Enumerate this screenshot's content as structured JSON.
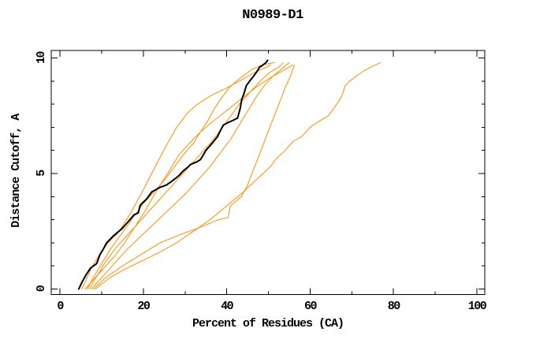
{
  "title": "N0989-D1",
  "chart_data": {
    "type": "line",
    "title": "N0989-D1",
    "xlabel": "Percent of Residues (CA)",
    "ylabel": "Distance Cutoff, A",
    "xlim": [
      0,
      100
    ],
    "ylim": [
      0,
      10
    ],
    "x_major_ticks": [
      0,
      20,
      40,
      60,
      80,
      100
    ],
    "x_minor_ticks": [
      10,
      30,
      50,
      70,
      90
    ],
    "y_major_ticks": [
      0,
      5,
      10
    ],
    "y_minor_ticks": [
      1,
      2,
      3,
      4,
      6,
      7,
      8,
      9
    ],
    "grid": false,
    "legend": "none",
    "colors": {
      "background": "#ffffff",
      "axis": "#000000",
      "highlight_model": "#000000",
      "other_models": "#ff8c00"
    },
    "series": [
      {
        "name": "orange-curve-1",
        "color": "#ff8c00",
        "width": 1,
        "points": [
          [
            5.2,
            0.0
          ],
          [
            6.5,
            0.5
          ],
          [
            7.8,
            1.0
          ],
          [
            9.5,
            1.5
          ],
          [
            11.5,
            2.0
          ],
          [
            13.8,
            2.4
          ],
          [
            16.0,
            3.0
          ],
          [
            17.9,
            3.6
          ],
          [
            20.0,
            4.3
          ],
          [
            22.0,
            5.0
          ],
          [
            24.0,
            5.7
          ],
          [
            26.1,
            6.4
          ],
          [
            28.0,
            7.0
          ],
          [
            30.5,
            7.6
          ],
          [
            33.0,
            8.0
          ],
          [
            36.5,
            8.4
          ],
          [
            40.0,
            8.7
          ],
          [
            44.0,
            9.1
          ],
          [
            47.0,
            9.4
          ],
          [
            49.5,
            9.6
          ],
          [
            50.5,
            9.7
          ]
        ]
      },
      {
        "name": "orange-curve-2",
        "color": "#ff8c00",
        "width": 1,
        "points": [
          [
            6.5,
            0.0
          ],
          [
            8.0,
            0.5
          ],
          [
            10.0,
            1.1
          ],
          [
            12.0,
            1.7
          ],
          [
            14.0,
            2.2
          ],
          [
            16.0,
            2.7
          ],
          [
            18.0,
            3.2
          ],
          [
            20.0,
            3.7
          ],
          [
            22.5,
            4.2
          ],
          [
            25.0,
            4.7
          ],
          [
            27.5,
            5.3
          ],
          [
            30.0,
            5.9
          ],
          [
            32.0,
            6.3
          ],
          [
            33.7,
            6.8
          ],
          [
            35.5,
            7.3
          ],
          [
            37.0,
            7.8
          ],
          [
            38.5,
            8.2
          ],
          [
            40.5,
            8.7
          ],
          [
            43.0,
            9.1
          ],
          [
            46.0,
            9.5
          ],
          [
            48.5,
            9.7
          ],
          [
            51.5,
            9.8
          ]
        ]
      },
      {
        "name": "orange-curve-3",
        "color": "#ff8c00",
        "width": 1,
        "points": [
          [
            7.0,
            0.0
          ],
          [
            9.0,
            0.6
          ],
          [
            11.0,
            1.2
          ],
          [
            13.5,
            1.8
          ],
          [
            16.0,
            2.3
          ],
          [
            19.0,
            2.9
          ],
          [
            22.0,
            3.5
          ],
          [
            25.0,
            4.1
          ],
          [
            28.0,
            4.7
          ],
          [
            31.0,
            5.3
          ],
          [
            34.0,
            5.9
          ],
          [
            36.5,
            6.4
          ],
          [
            39.0,
            7.0
          ],
          [
            41.0,
            7.5
          ],
          [
            43.0,
            8.0
          ],
          [
            45.5,
            8.5
          ],
          [
            48.0,
            9.0
          ],
          [
            50.5,
            9.4
          ],
          [
            52.5,
            9.6
          ],
          [
            53.5,
            9.8
          ]
        ]
      },
      {
        "name": "orange-curve-4",
        "color": "#ff8c00",
        "width": 1,
        "points": [
          [
            7.5,
            0.0
          ],
          [
            10.0,
            0.5
          ],
          [
            13.0,
            1.1
          ],
          [
            16.0,
            1.7
          ],
          [
            19.5,
            2.3
          ],
          [
            23.0,
            2.9
          ],
          [
            26.5,
            3.5
          ],
          [
            30.0,
            4.1
          ],
          [
            33.0,
            4.7
          ],
          [
            36.0,
            5.3
          ],
          [
            38.5,
            5.9
          ],
          [
            41.0,
            6.5
          ],
          [
            43.0,
            7.1
          ],
          [
            45.0,
            7.7
          ],
          [
            47.0,
            8.3
          ],
          [
            49.0,
            8.8
          ],
          [
            51.0,
            9.2
          ],
          [
            53.0,
            9.5
          ],
          [
            55.0,
            9.8
          ]
        ]
      },
      {
        "name": "orange-curve-5",
        "color": "#ff8c00",
        "width": 1,
        "points": [
          [
            8.0,
            0.0
          ],
          [
            11.0,
            0.5
          ],
          [
            15.0,
            1.0
          ],
          [
            19.5,
            1.5
          ],
          [
            24.0,
            2.0
          ],
          [
            29.5,
            2.4
          ],
          [
            34.0,
            2.7
          ],
          [
            38.0,
            3.0
          ],
          [
            40.3,
            3.1
          ],
          [
            40.9,
            3.6
          ],
          [
            43.5,
            4.0
          ],
          [
            45.0,
            4.5
          ],
          [
            46.5,
            5.2
          ],
          [
            48.0,
            5.9
          ],
          [
            49.5,
            6.6
          ],
          [
            51.0,
            7.3
          ],
          [
            52.5,
            8.0
          ],
          [
            54.0,
            8.7
          ],
          [
            55.5,
            9.3
          ],
          [
            56.2,
            9.7
          ]
        ]
      },
      {
        "name": "orange-curve-6",
        "color": "#ff8c00",
        "width": 1,
        "points": [
          [
            6.0,
            0.0
          ],
          [
            8.0,
            0.4
          ],
          [
            10.5,
            0.9
          ],
          [
            13.0,
            1.4
          ],
          [
            15.5,
            2.0
          ],
          [
            18.0,
            2.7
          ],
          [
            20.5,
            3.4
          ],
          [
            23.0,
            4.2
          ],
          [
            25.8,
            5.0
          ],
          [
            28.5,
            5.8
          ],
          [
            31.0,
            6.3
          ],
          [
            33.7,
            6.8
          ],
          [
            37.0,
            7.3
          ],
          [
            40.5,
            7.8
          ],
          [
            44.0,
            8.3
          ],
          [
            47.5,
            8.8
          ],
          [
            51.0,
            9.2
          ],
          [
            54.0,
            9.5
          ],
          [
            55.8,
            9.7
          ]
        ]
      },
      {
        "name": "orange-curve-7",
        "color": "#ff8c00",
        "width": 1,
        "points": [
          [
            8.5,
            0.0
          ],
          [
            12.0,
            0.5
          ],
          [
            16.0,
            0.9
          ],
          [
            19.5,
            1.2
          ],
          [
            24.0,
            1.6
          ],
          [
            28.0,
            2.0
          ],
          [
            32.0,
            2.5
          ],
          [
            36.0,
            3.0
          ],
          [
            40.0,
            3.6
          ],
          [
            44.0,
            4.2
          ],
          [
            47.5,
            4.8
          ],
          [
            50.5,
            5.3
          ],
          [
            51.7,
            5.6
          ],
          [
            54.0,
            6.0
          ],
          [
            56.0,
            6.4
          ],
          [
            58.0,
            6.6
          ],
          [
            60.0,
            7.0
          ],
          [
            62.5,
            7.3
          ],
          [
            64.4,
            7.5
          ],
          [
            66.0,
            7.9
          ],
          [
            67.5,
            8.3
          ],
          [
            68.4,
            8.8
          ],
          [
            69.5,
            9.0
          ],
          [
            71.0,
            9.2
          ],
          [
            72.5,
            9.4
          ],
          [
            74.5,
            9.6
          ],
          [
            76.9,
            9.8
          ]
        ]
      },
      {
        "name": "black-curve",
        "color": "#000000",
        "width": 2,
        "points": [
          [
            4.5,
            0.0
          ],
          [
            5.3,
            0.3
          ],
          [
            6.2,
            0.6
          ],
          [
            7.3,
            0.9
          ],
          [
            8.8,
            1.1
          ],
          [
            9.6,
            1.5
          ],
          [
            10.3,
            1.7
          ],
          [
            11.2,
            2.0
          ],
          [
            12.8,
            2.3
          ],
          [
            14.8,
            2.6
          ],
          [
            16.3,
            2.9
          ],
          [
            17.7,
            3.2
          ],
          [
            18.8,
            3.3
          ],
          [
            19.2,
            3.6
          ],
          [
            19.6,
            3.7
          ],
          [
            20.8,
            3.9
          ],
          [
            22.0,
            4.2
          ],
          [
            24.0,
            4.4
          ],
          [
            25.5,
            4.5
          ],
          [
            27.1,
            4.7
          ],
          [
            28.5,
            4.9
          ],
          [
            29.5,
            5.1
          ],
          [
            30.8,
            5.3
          ],
          [
            31.4,
            5.4
          ],
          [
            32.8,
            5.5
          ],
          [
            33.7,
            5.6
          ],
          [
            35.0,
            6.0
          ],
          [
            36.0,
            6.2
          ],
          [
            36.9,
            6.4
          ],
          [
            37.8,
            6.6
          ],
          [
            38.6,
            6.9
          ],
          [
            39.2,
            7.1
          ],
          [
            40.3,
            7.2
          ],
          [
            41.5,
            7.3
          ],
          [
            42.6,
            7.4
          ],
          [
            43.2,
            7.8
          ],
          [
            43.6,
            8.2
          ],
          [
            44.2,
            8.5
          ],
          [
            44.7,
            8.8
          ],
          [
            45.5,
            9.0
          ],
          [
            46.4,
            9.2
          ],
          [
            47.2,
            9.4
          ],
          [
            47.9,
            9.6
          ],
          [
            48.7,
            9.7
          ],
          [
            49.4,
            9.8
          ],
          [
            49.8,
            9.9
          ]
        ]
      }
    ]
  }
}
